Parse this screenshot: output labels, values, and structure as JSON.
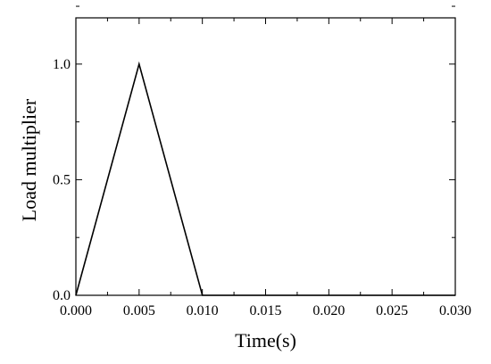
{
  "chart_data": {
    "type": "line",
    "title": "",
    "xlabel": "Time(s)",
    "ylabel": "Load multiplier",
    "xlim": [
      0.0,
      0.03
    ],
    "ylim": [
      0.0,
      1.2
    ],
    "x_ticks": [
      "0.000",
      "0.005",
      "0.010",
      "0.015",
      "0.020",
      "0.025",
      "0.030"
    ],
    "x_tick_values": [
      0.0,
      0.005,
      0.01,
      0.015,
      0.02,
      0.025,
      0.03
    ],
    "y_ticks": [
      "0.0",
      "0.5",
      "1.0"
    ],
    "y_tick_values": [
      0.0,
      0.5,
      1.0
    ],
    "grid": false,
    "legend": "none",
    "series": [
      {
        "x": [
          0.0,
          0.005,
          0.01,
          0.03
        ],
        "y": [
          0.0,
          1.0,
          0.0,
          0.0
        ],
        "color": "#000000"
      }
    ]
  }
}
